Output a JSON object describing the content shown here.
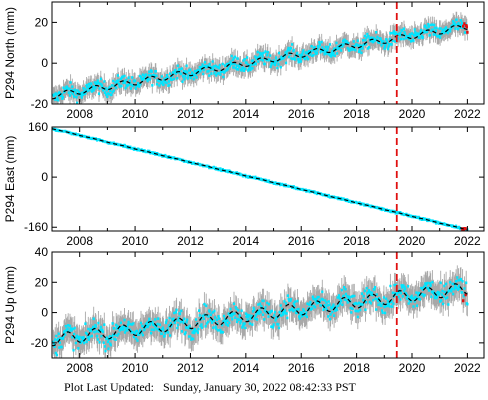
{
  "footer": {
    "label": "Plot Last Updated:",
    "timestamp": "Sunday, January 30, 2022 08:42:33 PST"
  },
  "colors": {
    "observations": "#00e5ff",
    "error_bars": "#a8a8a8",
    "recent_points": "#e01010",
    "model_line": "#000000",
    "event_line": "#e01010"
  },
  "chart_data": [
    {
      "type": "scatter",
      "ylabel": "P294 North (mm)",
      "xlim": [
        2007.0,
        2022.6
      ],
      "ylim": [
        -20,
        30
      ],
      "yticks": [
        -20,
        0,
        20
      ],
      "xticks": [
        2008,
        2010,
        2012,
        2014,
        2016,
        2018,
        2020,
        2022
      ],
      "xtick_labels": [
        "2008",
        "2010",
        "2012",
        "2014",
        "2016",
        "2018",
        "2020",
        "2022"
      ],
      "event_line_x": 2019.45,
      "model": {
        "start": [
          2007.0,
          -16
        ],
        "end": [
          2022.0,
          18
        ],
        "seasonal_amp": 1.5,
        "curve": 0
      },
      "scatter_sd": 2.5,
      "series": [
        {
          "values_desc": "cyan daily observations with grey error bars"
        },
        {
          "values_desc": "red recent observations after 2021"
        }
      ]
    },
    {
      "type": "scatter",
      "ylabel": "P294 East (mm)",
      "xlim": [
        2007.0,
        2022.6
      ],
      "ylim": [
        -172,
        160
      ],
      "yticks": [
        -160,
        0,
        160
      ],
      "xticks": [
        2008,
        2010,
        2012,
        2014,
        2016,
        2018,
        2020,
        2022
      ],
      "xtick_labels": [
        "2008",
        "2010",
        "2012",
        "2014",
        "2016",
        "2018",
        "2020",
        "2022"
      ],
      "event_line_x": 2019.45,
      "model": {
        "start": [
          2007.0,
          155
        ],
        "end": [
          2022.0,
          -168
        ],
        "seasonal_amp": 0.5,
        "curve": 0
      },
      "scatter_sd": 2,
      "series": [
        {
          "values_desc": "cyan daily observations with grey error bars"
        },
        {
          "values_desc": "red recent observations after 2021"
        }
      ]
    },
    {
      "type": "scatter",
      "ylabel": "P294 Up (mm)",
      "xlim": [
        2007.0,
        2022.6
      ],
      "ylim": [
        -30,
        40
      ],
      "yticks": [
        -20,
        0,
        20,
        40
      ],
      "xticks": [
        2008,
        2010,
        2012,
        2014,
        2016,
        2018,
        2020,
        2022
      ],
      "xtick_labels": [
        "2008",
        "2010",
        "2012",
        "2014",
        "2016",
        "2018",
        "2020",
        "2022"
      ],
      "event_line_x": 2019.45,
      "model": {
        "start": [
          2007.0,
          -18
        ],
        "end": [
          2022.0,
          16
        ],
        "seasonal_amp": 4,
        "curve": 0
      },
      "scatter_sd": 5,
      "series": [
        {
          "values_desc": "cyan daily observations with grey error bars"
        },
        {
          "values_desc": "red recent observations after 2021"
        }
      ]
    }
  ]
}
